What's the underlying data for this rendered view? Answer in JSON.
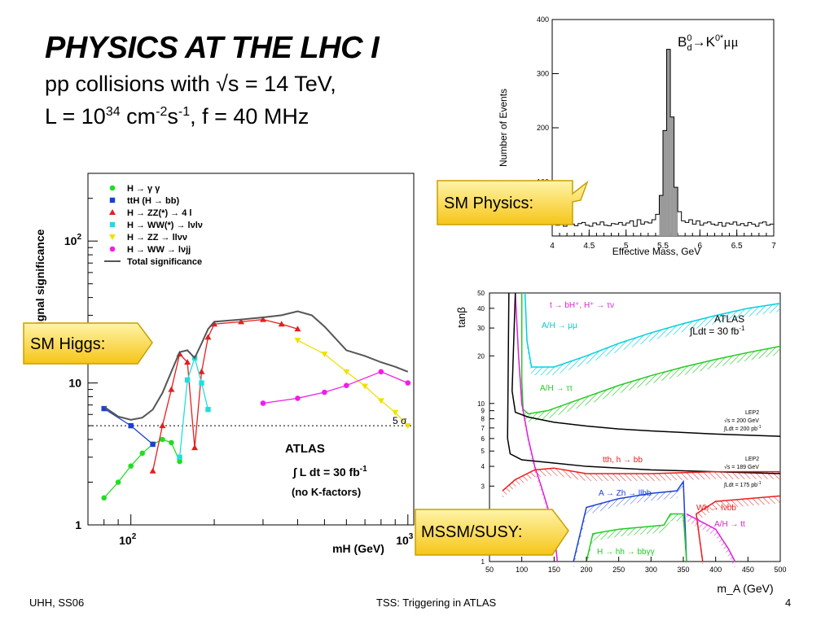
{
  "slide": {
    "title": "PHYSICS AT THE LHC I",
    "line1_prefix": "pp collisions with √s = 14 TeV,",
    "line2": {
      "a": "L = 10",
      "exp1": "34",
      "b": " cm",
      "exp2": "-2",
      "c": "s",
      "exp3": "-1",
      "d": ", f = 40 MHz"
    }
  },
  "callouts": {
    "sm_physics": "SM Physics:",
    "sm_higgs": "SM Higgs:",
    "mssm": "MSSM/SUSY:"
  },
  "footer": {
    "left": "UHH, SS06",
    "center": "TSS: Triggering in ATLAS",
    "right": "4"
  },
  "colors": {
    "callout_fill_top": "#fff4a8",
    "callout_fill_bottom": "#f5c518",
    "callout_stroke": "#c9a000"
  },
  "chart_data": [
    {
      "type": "bar",
      "id": "b-mass",
      "title": "B0d→K0*μμ",
      "title_parts": {
        "b": "B",
        "b_sup": "0",
        "b_sub": "d",
        "arrow": "→",
        "k": "K",
        "k_sup": "0*",
        "mumu": "μμ"
      },
      "xlabel": "Effective Mass, GeV",
      "ylabel": "Number of Events",
      "xlim": [
        4,
        7
      ],
      "ylim": [
        0,
        400
      ],
      "x_ticks": [
        "4",
        "4.5",
        "5",
        "5.5",
        "6",
        "6.5",
        "7"
      ],
      "y_ticks": [
        "100",
        "200",
        "300",
        "400"
      ],
      "bin_width": 0.05,
      "bin_start": 4.0,
      "values": [
        22,
        20,
        24,
        18,
        26,
        22,
        19,
        23,
        25,
        20,
        18,
        24,
        21,
        26,
        20,
        19,
        23,
        22,
        25,
        20,
        24,
        28,
        18,
        30,
        22,
        26,
        24,
        30,
        40,
        75,
        195,
        345,
        220,
        90,
        45,
        28,
        25,
        30,
        22,
        28,
        20,
        24,
        26,
        22,
        20,
        25,
        18,
        24,
        22,
        26,
        20,
        23,
        19,
        25,
        22,
        18,
        24,
        26,
        20,
        22
      ]
    },
    {
      "type": "line",
      "id": "higgs-significance",
      "xlabel": "mH (GeV)",
      "ylabel": "Signal significance",
      "xscale": "log",
      "yscale": "log",
      "xlim": [
        70,
        1050
      ],
      "ylim": [
        1,
        300
      ],
      "x_ticks": [
        {
          "v": 100,
          "label": "10",
          "sup": "2"
        },
        {
          "v": 1000,
          "label": "10",
          "sup": "3"
        }
      ],
      "y_ticks": [
        {
          "v": 1,
          "label": "1"
        },
        {
          "v": 10,
          "label": "10"
        },
        {
          "v": 100,
          "label": "10",
          "sup": "2"
        }
      ],
      "five_sigma": {
        "value": 5,
        "label": "5 σ"
      },
      "annotations": [
        "ATLAS",
        "∫ L dt = 30 fb",
        "-1",
        "(no K-factors)"
      ],
      "legend": [
        {
          "label": "H → γ γ",
          "color": "#22dd22",
          "marker": "circle"
        },
        {
          "label": "ttH (H → bb)",
          "color": "#1a3fd6",
          "marker": "square"
        },
        {
          "label": "H → ZZ(*) → 4 l",
          "color": "#e61e1e",
          "marker": "triangle"
        },
        {
          "label": "H → WW(*) → lνlν",
          "color": "#22dddd",
          "marker": "square"
        },
        {
          "label": "H → ZZ → llνν",
          "color": "#f2e000",
          "marker": "tri-down"
        },
        {
          "label": "H → WW → lνjj",
          "color": "#f01ee6",
          "marker": "circle"
        },
        {
          "label": "Total significance",
          "color": "#555555",
          "marker": "line"
        }
      ],
      "series": [
        {
          "name": "H → γ γ",
          "color": "#22dd22",
          "marker": "circle",
          "points": [
            [
              80,
              1.55
            ],
            [
              90,
              2.0
            ],
            [
              100,
              2.6
            ],
            [
              110,
              3.2
            ],
            [
              120,
              3.7
            ],
            [
              130,
              4.0
            ],
            [
              140,
              3.8
            ],
            [
              150,
              2.8
            ]
          ]
        },
        {
          "name": "ttH (H → bb)",
          "color": "#1a3fd6",
          "marker": "square",
          "points": [
            [
              80,
              6.6
            ],
            [
              100,
              5.0
            ],
            [
              120,
              3.7
            ]
          ]
        },
        {
          "name": "H → ZZ(*) → 4 l",
          "color": "#e61e1e",
          "marker": "triangle",
          "points": [
            [
              120,
              2.4
            ],
            [
              130,
              5.0
            ],
            [
              140,
              9.0
            ],
            [
              150,
              16
            ],
            [
              160,
              14
            ],
            [
              170,
              3.5
            ],
            [
              180,
              12
            ],
            [
              190,
              21
            ],
            [
              200,
              26
            ],
            [
              250,
              27
            ],
            [
              300,
              28
            ],
            [
              350,
              26
            ],
            [
              400,
              24
            ]
          ]
        },
        {
          "name": "H → WW(*) → lνlν",
          "color": "#22dddd",
          "marker": "square",
          "points": [
            [
              150,
              3.0
            ],
            [
              160,
              10.5
            ],
            [
              170,
              15
            ],
            [
              180,
              10
            ],
            [
              190,
              6.5
            ]
          ]
        },
        {
          "name": "H → ZZ → llνν",
          "color": "#f2e000",
          "marker": "tri-down",
          "points": [
            [
              400,
              20
            ],
            [
              500,
              16
            ],
            [
              600,
              12
            ],
            [
              700,
              9.5
            ],
            [
              800,
              7.5
            ],
            [
              900,
              6.2
            ],
            [
              1000,
              5.0
            ]
          ]
        },
        {
          "name": "H → WW → lνjj",
          "color": "#f01ee6",
          "marker": "circle",
          "points": [
            [
              300,
              7.2
            ],
            [
              400,
              7.8
            ],
            [
              500,
              8.6
            ],
            [
              600,
              9.6
            ],
            [
              800,
              12
            ],
            [
              1000,
              10
            ]
          ]
        },
        {
          "name": "Total significance",
          "color": "#555555",
          "marker": "none",
          "points": [
            [
              80,
              6.8
            ],
            [
              90,
              5.8
            ],
            [
              100,
              5.5
            ],
            [
              110,
              5.7
            ],
            [
              120,
              6.5
            ],
            [
              130,
              8.5
            ],
            [
              140,
              12
            ],
            [
              150,
              16.5
            ],
            [
              160,
              17
            ],
            [
              170,
              15
            ],
            [
              180,
              19
            ],
            [
              190,
              24
            ],
            [
              200,
              27
            ],
            [
              250,
              28
            ],
            [
              300,
              29
            ],
            [
              350,
              30
            ],
            [
              400,
              32
            ],
            [
              450,
              30
            ],
            [
              500,
              25
            ],
            [
              600,
              17
            ],
            [
              700,
              15.5
            ],
            [
              800,
              14
            ],
            [
              900,
              13
            ],
            [
              1000,
              12
            ]
          ]
        }
      ]
    },
    {
      "type": "area",
      "id": "mssm-plane",
      "xlabel": "m_A (GeV)",
      "ylabel": "tanβ",
      "xscale": "linear",
      "yscale": "log",
      "xlim": [
        50,
        500
      ],
      "ylim": [
        1,
        50
      ],
      "x_ticks": [
        "50",
        "100",
        "150",
        "200",
        "250",
        "300",
        "350",
        "400",
        "450",
        "500"
      ],
      "y_ticks": [
        {
          "v": 1,
          "label": "1"
        },
        {
          "v": 2,
          "label": "2"
        },
        {
          "v": 3,
          "label": "3"
        },
        {
          "v": 4,
          "label": "4"
        },
        {
          "v": 5,
          "label": "5"
        },
        {
          "v": 6,
          "label": "6"
        },
        {
          "v": 7,
          "label": "7"
        },
        {
          "v": 8,
          "label": "8"
        },
        {
          "v": 9,
          "label": "9"
        },
        {
          "v": 10,
          "label": "10"
        },
        {
          "v": 20,
          "label": "20"
        },
        {
          "v": 30,
          "label": "30"
        },
        {
          "v": 40,
          "label": "40"
        },
        {
          "v": 50,
          "label": "50"
        }
      ],
      "annotations": {
        "atlas": "ATLAS",
        "lumi": "∫Ldt = 30 fb",
        "lumi_sup": "-1",
        "lep200": [
          "LEP2",
          "√s = 200 GeV",
          "∫Ldt = 200 pb",
          "-1"
        ],
        "lep189": [
          "LEP2",
          "√s = 189 GeV",
          "∫Ldt = 175 pb",
          "-1"
        ]
      },
      "labels": [
        {
          "text": "t → bH⁺, H⁺ → τν",
          "color": "#e01ed6"
        },
        {
          "text": "A/H → μμ",
          "color": "#00cccc"
        },
        {
          "text": "A/H → ττ",
          "color": "#22cc22"
        },
        {
          "text": "tth, h → bb",
          "color": "#e61e1e"
        },
        {
          "text": "A → Zh → llbb",
          "color": "#1a3fd6"
        },
        {
          "text": "Wh → lνbb",
          "color": "#e61e1e"
        },
        {
          "text": "A/H → tt",
          "color": "#e01ed6"
        },
        {
          "text": "H → hh → bbγγ",
          "color": "#22cc22"
        }
      ],
      "curves": [
        {
          "name": "A/H → μμ",
          "color": "#00d0e0",
          "points": [
            [
              105,
              50
            ],
            [
              108,
              25
            ],
            [
              115,
              17
            ],
            [
              150,
              17
            ],
            [
              200,
              20
            ],
            [
              250,
              24
            ],
            [
              300,
              28
            ],
            [
              350,
              32
            ],
            [
              400,
              36
            ],
            [
              450,
              40
            ],
            [
              500,
              43
            ]
          ]
        },
        {
          "name": "A/H → ττ",
          "color": "#22cc22",
          "points": [
            [
              100,
              50
            ],
            [
              100,
              14
            ],
            [
              102,
              9.2
            ],
            [
              110,
              8.6
            ],
            [
              140,
              9.0
            ],
            [
              200,
              11
            ],
            [
              250,
              13
            ],
            [
              300,
              15
            ],
            [
              350,
              17
            ],
            [
              400,
              19
            ],
            [
              450,
              21
            ],
            [
              500,
              23
            ]
          ]
        },
        {
          "name": "t → bH⁺",
          "color": "#e01ed6",
          "points": [
            [
              90,
              50
            ],
            [
              95,
              20
            ],
            [
              100,
              10
            ],
            [
              110,
              6
            ],
            [
              120,
              4
            ],
            [
              130,
              3
            ],
            [
              140,
              2.2
            ],
            [
              150,
              1.6
            ],
            [
              155,
              1.0
            ]
          ]
        },
        {
          "name": "LEP2 200",
          "color": "#000000",
          "points": [
            [
              90,
              50
            ],
            [
              85,
              12
            ],
            [
              90,
              8.8
            ],
            [
              110,
              8.2
            ],
            [
              150,
              7.6
            ],
            [
              200,
              7.2
            ],
            [
              250,
              6.9
            ],
            [
              300,
              6.7
            ],
            [
              400,
              6.4
            ],
            [
              500,
              6.2
            ]
          ]
        },
        {
          "name": "LEP2 189",
          "color": "#000000",
          "points": [
            [
              80,
              50
            ],
            [
              78,
              6
            ],
            [
              82,
              4.8
            ],
            [
              100,
              4.4
            ],
            [
              150,
              4.2
            ],
            [
              200,
              4.0
            ],
            [
              300,
              3.8
            ],
            [
              500,
              3.6
            ]
          ]
        },
        {
          "name": "tth, h → bb",
          "color": "#e61e1e",
          "points": [
            [
              70,
              2.8
            ],
            [
              90,
              3.3
            ],
            [
              120,
              3.8
            ],
            [
              150,
              3.9
            ],
            [
              200,
              3.6
            ],
            [
              300,
              3.6
            ],
            [
              400,
              3.7
            ],
            [
              500,
              3.7
            ]
          ]
        },
        {
          "name": "A → Zh → llbb",
          "color": "#1a3fd6",
          "points": [
            [
              180,
              1.0
            ],
            [
              200,
              2.2
            ],
            [
              250,
              2.5
            ],
            [
              300,
              2.7
            ],
            [
              340,
              2.8
            ],
            [
              350,
              3.2
            ],
            [
              355,
              1.0
            ]
          ]
        },
        {
          "name": "Wh → lνbb",
          "color": "#e61e1e",
          "points": [
            [
              380,
              1.0
            ],
            [
              370,
              2.0
            ],
            [
              400,
              2.4
            ],
            [
              500,
              2.6
            ]
          ]
        },
        {
          "name": "H → hh → bbγγ",
          "color": "#22cc22",
          "points": [
            [
              200,
              1.0
            ],
            [
              210,
              1.5
            ],
            [
              250,
              1.6
            ],
            [
              320,
              1.7
            ],
            [
              330,
              2.0
            ],
            [
              350,
              2.0
            ],
            [
              355,
              1.0
            ]
          ]
        },
        {
          "name": "A/H → tt",
          "color": "#e01ed6",
          "points": [
            [
              355,
              2.0
            ],
            [
              400,
              1.6
            ],
            [
              420,
              1.2
            ],
            [
              430,
              1.0
            ]
          ]
        }
      ]
    }
  ]
}
